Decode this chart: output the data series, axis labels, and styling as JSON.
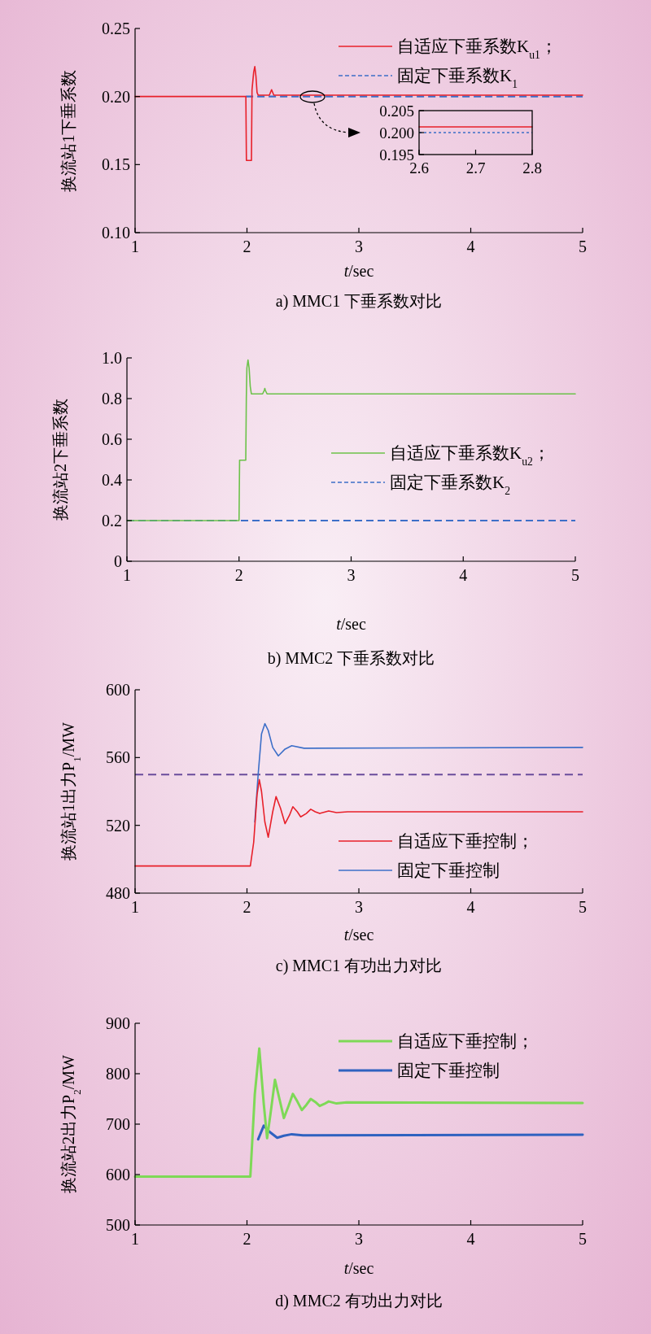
{
  "chart_data": [
    {
      "type": "line",
      "title": "a) MMC1 下垂系数对比",
      "xlabel": "t/sec",
      "ylabel": "换流站1下垂系数",
      "xlim": [
        1,
        5
      ],
      "ylim": [
        0.1,
        0.25
      ],
      "xticks": [
        1,
        2,
        3,
        4,
        5
      ],
      "yticks": [
        {
          "value": 0.1,
          "label": "0.10"
        },
        0.15,
        {
          "value": 0.2,
          "label": "0.20"
        },
        0.25
      ],
      "legend": "top right",
      "series": [
        {
          "name": "自适应下垂系数K$_{u1}$；",
          "color": "#e8202a",
          "line_style": "solid",
          "x": [
            1,
            1.99,
            1.995,
            2.04,
            2.045,
            2.06,
            2.07,
            2.08,
            2.09,
            2.1,
            2.2,
            2.215,
            2.22,
            2.225,
            2.24,
            5
          ],
          "values": [
            0.2,
            0.2,
            0.153,
            0.153,
            0.205,
            0.218,
            0.222,
            0.215,
            0.203,
            0.201,
            0.201,
            0.204,
            0.205,
            0.204,
            0.201,
            0.201
          ]
        },
        {
          "name": "固定下垂系数K$_{1}$",
          "color": "#3d6fc8",
          "line_style": "dashed",
          "x": [
            1.99,
            5
          ],
          "values": [
            0.2,
            0.2
          ]
        }
      ]
    },
    {
      "type": "line",
      "xlim": [
        2.6,
        2.8
      ],
      "ylim": [
        0.195,
        0.205
      ],
      "xticks": [
        2.6,
        2.7,
        2.8
      ],
      "yticks": [
        {
          "value": 0.195,
          "label": "0.195"
        },
        {
          "value": 0.2,
          "label": "0.200"
        },
        {
          "value": 0.205,
          "label": "0.205"
        }
      ],
      "series": [
        {
          "color": "#e8202a",
          "line_style": "solid",
          "x": [
            2.6,
            2.8
          ],
          "values": [
            0.2013,
            0.2013
          ]
        },
        {
          "color": "#3d6fc8",
          "line_style": "dashed",
          "x": [
            2.6,
            2.8
          ],
          "values": [
            0.2,
            0.2
          ]
        }
      ]
    },
    {
      "type": "line",
      "title": "b) MMC2 下垂系数对比",
      "xlabel": "t/sec",
      "ylabel": "换流站2下垂系数",
      "xlim": [
        1,
        5
      ],
      "ylim": [
        0,
        1
      ],
      "xticks": [
        1,
        2,
        3,
        4,
        5
      ],
      "yticks": [
        0,
        0.2,
        0.4,
        0.6,
        0.8,
        {
          "value": 1,
          "label": "1.0"
        }
      ],
      "legend": "right",
      "series": [
        {
          "name": "自适应下垂系数K$_{u2}$；",
          "color": "#6cc24a",
          "line_style": "solid",
          "x": [
            1,
            2.0,
            2.005,
            2.06,
            2.065,
            2.07,
            2.08,
            2.09,
            2.1,
            2.11,
            2.21,
            2.225,
            2.23,
            2.235,
            2.25,
            5
          ],
          "values": [
            0.2,
            0.2,
            0.497,
            0.497,
            0.8,
            0.95,
            0.99,
            0.95,
            0.86,
            0.823,
            0.823,
            0.84,
            0.85,
            0.84,
            0.823,
            0.823
          ]
        },
        {
          "name": "固定下垂系数K$_{2}$",
          "color": "#3d6fc8",
          "line_style": "dashed",
          "x": [
            1,
            5
          ],
          "values": [
            0.2,
            0.2
          ]
        }
      ]
    },
    {
      "type": "line",
      "title": "c) MMC1 有功出力对比",
      "xlabel": "t/sec",
      "ylabel": "换流站1出力P$_{1}$/MW",
      "xlim": [
        1,
        5
      ],
      "ylim": [
        480,
        600
      ],
      "xticks": [
        1,
        2,
        3,
        4,
        5
      ],
      "yticks": [
        480,
        520,
        560,
        600
      ],
      "legend": "bottom right",
      "ref_lines": [
        {
          "axis": "y",
          "value": 550,
          "color": "#6a4c9c",
          "line_style": "dashed"
        }
      ],
      "series": [
        {
          "name": "自适应下垂控制；",
          "color": "#e8202a",
          "line_style": "solid",
          "x": [
            1,
            2.03,
            2.06,
            2.09,
            2.11,
            2.13,
            2.16,
            2.19,
            2.23,
            2.26,
            2.3,
            2.34,
            2.38,
            2.41,
            2.45,
            2.48,
            2.53,
            2.57,
            2.61,
            2.65,
            2.73,
            2.8,
            2.9,
            5
          ],
          "values": [
            496,
            496,
            510,
            538,
            547,
            540,
            522,
            513,
            528,
            537,
            530,
            521,
            526,
            531,
            528,
            525,
            527,
            529.5,
            528,
            527,
            528.5,
            527.5,
            528,
            528
          ]
        },
        {
          "name": "固定下垂控制",
          "color": "#3d6fc8",
          "line_style": "solid",
          "x": [
            2.07,
            2.1,
            2.13,
            2.16,
            2.19,
            2.23,
            2.28,
            2.34,
            2.4,
            2.51,
            5
          ],
          "values": [
            522,
            550,
            574,
            580,
            576,
            566,
            561,
            565,
            567,
            565.5,
            566
          ]
        }
      ]
    },
    {
      "type": "line",
      "title": "d) MMC2 有功出力对比",
      "xlabel": "t/sec",
      "ylabel": "换流站2出力P$_{2}$/MW",
      "xlim": [
        1,
        5
      ],
      "ylim": [
        500,
        900
      ],
      "xticks": [
        1,
        2,
        3,
        4,
        5
      ],
      "yticks": [
        500,
        600,
        700,
        800,
        900
      ],
      "legend": "top right",
      "series": [
        {
          "name": "自适应下垂控制；",
          "color": "#7ed957",
          "line_style": "solid",
          "x": [
            1,
            2.03,
            2.07,
            2.11,
            2.15,
            2.18,
            2.21,
            2.25,
            2.29,
            2.33,
            2.37,
            2.41,
            2.45,
            2.49,
            2.53,
            2.57,
            2.61,
            2.65,
            2.69,
            2.73,
            2.8,
            2.89,
            5
          ],
          "values": [
            596,
            596,
            760,
            850,
            740,
            672,
            720,
            788,
            750,
            712,
            735,
            760,
            745,
            728,
            738,
            750,
            744,
            736,
            740,
            745,
            741,
            743,
            742
          ]
        },
        {
          "name": "固定下垂控制",
          "color": "#2f62c0",
          "line_style": "solid",
          "x": [
            2.1,
            2.15,
            2.2,
            2.27,
            2.33,
            2.4,
            2.5,
            5
          ],
          "values": [
            670,
            697,
            685,
            673,
            677,
            680,
            678,
            679
          ]
        }
      ]
    }
  ]
}
